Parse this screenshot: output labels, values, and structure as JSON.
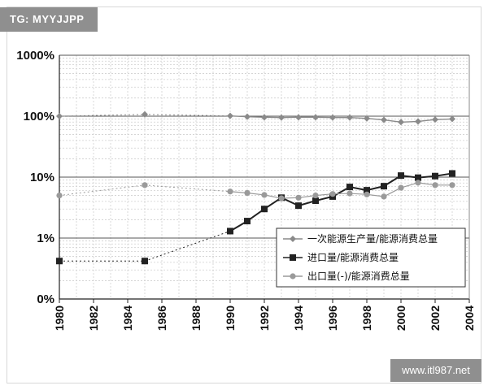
{
  "watermark_top": "TG: MYYJJPP",
  "watermark_bottom": "www.itl987.net",
  "chart_data": {
    "type": "line",
    "yscale": "log",
    "ylim": [
      "0%",
      "1000%"
    ],
    "xlim": [
      1980,
      2004
    ],
    "grid": true,
    "legend_position": "bottom-right",
    "y_ticks": [
      "1000%",
      "100%",
      "10%",
      "1%",
      "0%"
    ],
    "x_ticks": [
      "1980",
      "1982",
      "1984",
      "1986",
      "1988",
      "1990",
      "1992",
      "1994",
      "1996",
      "1998",
      "2000",
      "2002",
      "2004"
    ],
    "series": [
      {
        "name": "一次能源生产量/能源消费总量",
        "color": "#8a8a8a",
        "marker": "diamond",
        "x": [
          1980,
          1985,
          1990,
          1991,
          1992,
          1993,
          1994,
          1995,
          1996,
          1997,
          1998,
          1999,
          2000,
          2001,
          2002,
          2003
        ],
        "y": [
          100,
          107,
          101,
          98,
          96,
          95,
          96,
          96,
          95,
          95,
          92,
          87,
          80,
          82,
          88,
          90
        ]
      },
      {
        "name": "进口量/能源消费总量",
        "color": "#222222",
        "marker": "square",
        "x": [
          1980,
          1985,
          1990,
          1991,
          1992,
          1993,
          1994,
          1995,
          1996,
          1997,
          1998,
          1999,
          2000,
          2001,
          2002,
          2003
        ],
        "y": [
          0.42,
          0.42,
          1.3,
          1.9,
          3.0,
          4.6,
          3.4,
          4.1,
          4.8,
          6.9,
          6.1,
          7.1,
          10.6,
          9.8,
          10.4,
          11.5
        ]
      },
      {
        "name": "出口量(-)/能源消费总量",
        "color": "#9a9a9a",
        "marker": "circle",
        "x": [
          1980,
          1985,
          1990,
          1991,
          1992,
          1993,
          1994,
          1995,
          1996,
          1997,
          1998,
          1999,
          2000,
          2001,
          2002,
          2003
        ],
        "y": [
          5.0,
          7.4,
          5.8,
          5.5,
          5.1,
          4.5,
          4.6,
          5.0,
          5.3,
          5.4,
          5.2,
          4.8,
          6.7,
          8.1,
          7.4,
          7.4
        ]
      }
    ]
  }
}
